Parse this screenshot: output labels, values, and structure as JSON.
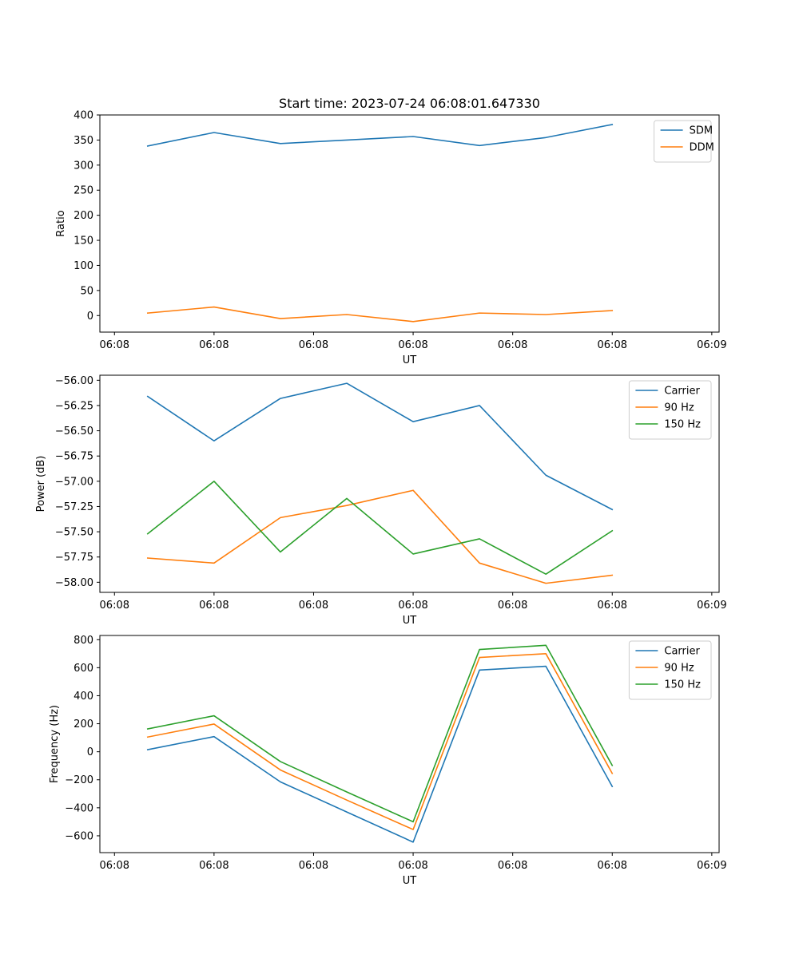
{
  "chart_data": [
    {
      "type": "line",
      "title": "Start time: 2023-07-24 06:08:01.647330",
      "xlabel": "UT",
      "ylabel": "Ratio",
      "x": [
        1,
        2,
        3,
        4,
        5,
        6,
        7,
        8
      ],
      "xlim": [
        0.28,
        9.61
      ],
      "x_ticks": [
        0.5,
        2,
        3.5,
        5,
        6.5,
        8,
        9.5
      ],
      "x_tick_labels": [
        "06:08",
        "06:08",
        "06:08",
        "06:08",
        "06:08",
        "06:08",
        "06:09"
      ],
      "ylim": [
        -33,
        400
      ],
      "y_ticks": [
        0,
        50,
        100,
        150,
        200,
        250,
        300,
        350,
        400
      ],
      "y_tick_labels": [
        "0",
        "50",
        "100",
        "150",
        "200",
        "250",
        "300",
        "350",
        "400"
      ],
      "legend_position": "top-right",
      "series": [
        {
          "name": "SDM",
          "color": "#1f77b4",
          "values": [
            338,
            365,
            343,
            350,
            357,
            339,
            355,
            381
          ]
        },
        {
          "name": "DDM",
          "color": "#ff7f0e",
          "values": [
            5,
            17,
            -6,
            2,
            -12,
            5,
            2,
            10
          ]
        }
      ]
    },
    {
      "type": "line",
      "title": "",
      "xlabel": "UT",
      "ylabel": "Power (dB)",
      "x": [
        1,
        2,
        3,
        4,
        5,
        6,
        7,
        8
      ],
      "xlim": [
        0.28,
        9.61
      ],
      "x_ticks": [
        0.5,
        2,
        3.5,
        5,
        6.5,
        8,
        9.5
      ],
      "x_tick_labels": [
        "06:08",
        "06:08",
        "06:08",
        "06:08",
        "06:08",
        "06:08",
        "06:09"
      ],
      "ylim": [
        -58.1,
        -55.95
      ],
      "y_ticks": [
        -58.0,
        -57.75,
        -57.5,
        -57.25,
        -57.0,
        -56.75,
        -56.5,
        -56.25,
        -56.0
      ],
      "y_tick_labels": [
        "−58.00",
        "−57.75",
        "−57.50",
        "−57.25",
        "−57.00",
        "−56.75",
        "−56.50",
        "−56.25",
        "−56.00"
      ],
      "legend_position": "top-right",
      "series": [
        {
          "name": "Carrier",
          "color": "#1f77b4",
          "values": [
            -56.16,
            -56.6,
            -56.18,
            -56.03,
            -56.41,
            -56.25,
            -56.94,
            -57.28
          ]
        },
        {
          "name": "90 Hz",
          "color": "#ff7f0e",
          "values": [
            -57.76,
            -57.81,
            -57.36,
            -57.24,
            -57.09,
            -57.81,
            -58.01,
            -57.93
          ]
        },
        {
          "name": "150 Hz",
          "color": "#2ca02c",
          "values": [
            -57.52,
            -57.0,
            -57.7,
            -57.17,
            -57.72,
            -57.57,
            -57.92,
            -57.49
          ]
        }
      ]
    },
    {
      "type": "line",
      "title": "",
      "xlabel": "UT",
      "ylabel": "Frequency (Hz)",
      "x": [
        1,
        2,
        3,
        4,
        5,
        6,
        7,
        8
      ],
      "xlim": [
        0.28,
        9.61
      ],
      "x_ticks": [
        0.5,
        2,
        3.5,
        5,
        6.5,
        8,
        9.5
      ],
      "x_tick_labels": [
        "06:08",
        "06:08",
        "06:08",
        "06:08",
        "06:08",
        "06:08",
        "06:09"
      ],
      "ylim": [
        -720,
        830
      ],
      "y_ticks": [
        -600,
        -400,
        -200,
        0,
        200,
        400,
        600,
        800
      ],
      "y_tick_labels": [
        "−600",
        "−400",
        "−200",
        "0",
        "200",
        "400",
        "600",
        "800"
      ],
      "legend_position": "top-right",
      "series": [
        {
          "name": "Carrier",
          "color": "#1f77b4",
          "values": [
            15,
            108,
            -215,
            -430,
            -645,
            583,
            610,
            -248
          ]
        },
        {
          "name": "90 Hz",
          "color": "#ff7f0e",
          "values": [
            105,
            198,
            -130,
            -345,
            -555,
            673,
            700,
            -155
          ]
        },
        {
          "name": "150 Hz",
          "color": "#2ca02c",
          "values": [
            163,
            257,
            -70,
            -287,
            -500,
            730,
            760,
            -98
          ]
        }
      ]
    }
  ]
}
